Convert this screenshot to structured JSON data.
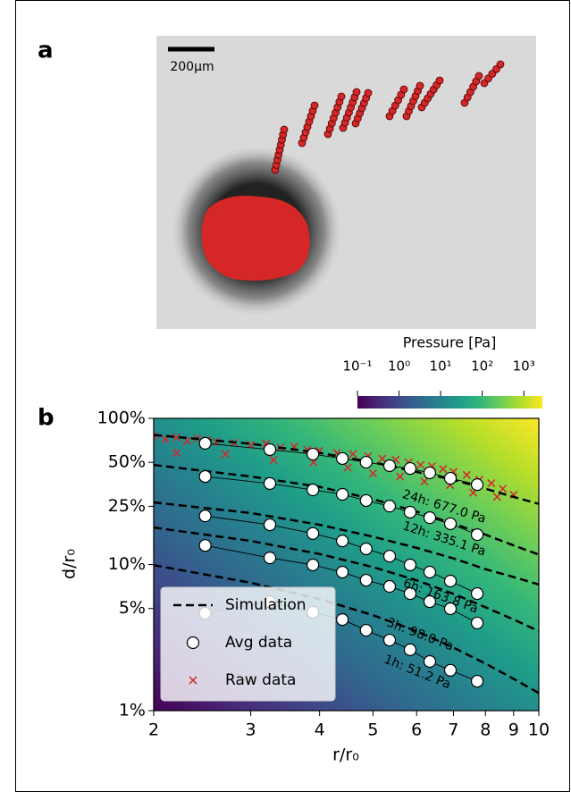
{
  "chart_data": {
    "type": "line",
    "panel_a_label": "a",
    "panel_b_label": "b",
    "scale_bar_label": "200µm",
    "xlabel": "r/r₀",
    "ylabel": "d/r₀",
    "xscale": "log",
    "yscale": "log",
    "xlim": [
      2,
      10
    ],
    "ylim": [
      1,
      100
    ],
    "xticks": [
      2,
      3,
      4,
      5,
      6,
      7,
      8,
      9,
      10
    ],
    "yticks": [
      {
        "value": 1,
        "label": "1%"
      },
      {
        "value": 5,
        "label": "5%"
      },
      {
        "value": 10,
        "label": "10%"
      },
      {
        "value": 25,
        "label": "25%"
      },
      {
        "value": 50,
        "label": "50%"
      },
      {
        "value": 100,
        "label": "100%"
      }
    ],
    "legend": "lower left",
    "colorbar": {
      "label": "Pressure [Pa]",
      "scale": "log",
      "lim": [
        0.1,
        2800
      ],
      "ticks": [
        {
          "value": 0.1,
          "label": "10⁻¹"
        },
        {
          "value": 1,
          "label": "10⁰"
        },
        {
          "value": 10,
          "label": "10¹"
        },
        {
          "value": 100,
          "label": "10²"
        },
        {
          "value": 1000,
          "label": "10³"
        }
      ],
      "colormap": [
        "#440154",
        "#482878",
        "#3e4989",
        "#31688e",
        "#26828e",
        "#1f9e89",
        "#35b779",
        "#6ece58",
        "#b5de2b",
        "#fde725"
      ]
    },
    "simulation": {
      "name": "Simulation",
      "color": "#000000",
      "x": [
        2,
        3,
        4,
        5,
        6,
        7,
        8,
        9,
        10
      ],
      "curves": [
        {
          "label": "24h: 677.0 Pa",
          "values": [
            77,
            67,
            58,
            50,
            43,
            38,
            33,
            29,
            26
          ]
        },
        {
          "label": "12h: 335.1 Pa",
          "values": [
            48,
            40,
            34,
            28,
            23,
            19,
            16,
            13.5,
            11.7
          ]
        },
        {
          "label": "6h: 163.8 Pa",
          "values": [
            26.6,
            22.5,
            18.7,
            15.5,
            13,
            11,
            9.3,
            8.2,
            7.3
          ]
        },
        {
          "label": "3h: 98.0 Pa",
          "values": [
            17.9,
            14.5,
            11.8,
            9.6,
            7.8,
            6.3,
            5.1,
            4.2,
            3.5
          ]
        },
        {
          "label": "1h: 51.2 Pa",
          "values": [
            9.9,
            7.5,
            5.8,
            4.5,
            3.5,
            2.7,
            2.1,
            1.65,
            1.32
          ]
        }
      ]
    },
    "avg_data": {
      "name": "Avg data",
      "x": [
        2.48,
        3.25,
        3.89,
        4.4,
        4.86,
        5.36,
        5.84,
        6.34,
        6.91,
        7.73
      ],
      "curves": [
        {
          "values": [
            67.5,
            61.1,
            56.9,
            53.1,
            50.1,
            47.4,
            45.4,
            42.4,
            38.9,
            35.2
          ]
        },
        {
          "values": [
            40.0,
            35.8,
            32.4,
            30.2,
            27.4,
            25.1,
            22.8,
            20.9,
            19.0,
            16.0
          ]
        },
        {
          "values": [
            21.5,
            18.7,
            16.3,
            14.5,
            12.8,
            11.4,
            9.93,
            8.87,
            7.71,
            6.32
          ]
        },
        {
          "values": [
            13.5,
            11.1,
            9.93,
            8.87,
            7.81,
            7.08,
            6.32,
            5.57,
            4.98,
            3.98
          ]
        },
        {
          "values": [
            4.64,
            5.57,
            4.71,
            4.2,
            3.55,
            3.04,
            2.61,
            2.17,
            1.89,
            1.59
          ]
        }
      ]
    },
    "raw_data": {
      "name": "Raw data",
      "color": "#d62728",
      "x": [
        2.0,
        2.1,
        2.2,
        2.3,
        2.4,
        2.5,
        2.6,
        2.8,
        3.0,
        3.2,
        3.4,
        3.6,
        3.8,
        4.0,
        4.3,
        4.6,
        4.9,
        5.2,
        5.5,
        5.8,
        6.1,
        6.4,
        6.7,
        7.0,
        7.4,
        7.8,
        8.2,
        8.6,
        9.0,
        2.2,
        2.7,
        3.3,
        3.9,
        4.5,
        5.0,
        5.6,
        6.2,
        6.9,
        7.6,
        8.4
      ],
      "y": [
        76,
        72,
        74,
        70,
        73,
        71,
        69,
        68,
        66,
        67,
        63,
        64,
        61,
        60,
        58,
        57,
        55,
        53,
        52,
        50,
        48,
        47,
        45,
        43,
        41,
        38,
        36,
        33,
        30,
        58,
        57,
        52,
        50,
        46,
        42,
        40,
        37,
        35,
        31,
        29
      ]
    }
  }
}
